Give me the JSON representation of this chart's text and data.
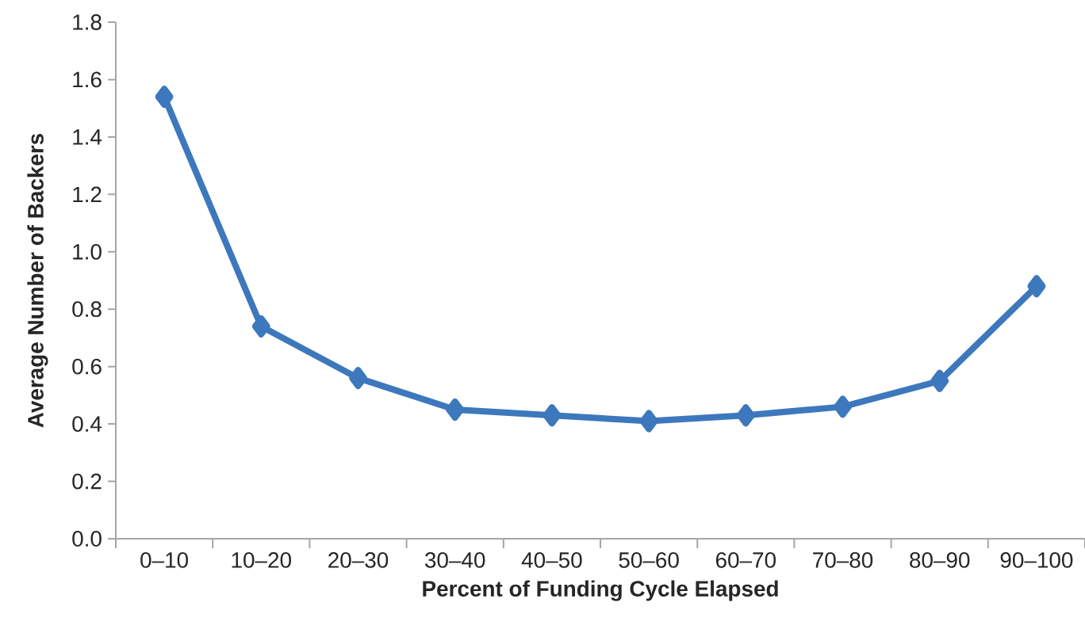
{
  "chart_data": {
    "type": "line",
    "xlabel": "Percent of Funding Cycle Elapsed",
    "ylabel": "Average Number of Backers",
    "categories": [
      "0–10",
      "10–20",
      "20–30",
      "30–40",
      "40–50",
      "50–60",
      "60–70",
      "70–80",
      "80–90",
      "90–100"
    ],
    "series": [
      {
        "color": "#3d78bd",
        "values": [
          1.54,
          0.74,
          0.56,
          0.45,
          0.43,
          0.41,
          0.43,
          0.46,
          0.55,
          0.88
        ]
      }
    ],
    "ylim": [
      0,
      1.8
    ],
    "yticks": [
      {
        "value": 0,
        "label": "0.0"
      },
      {
        "value": 0.2,
        "label": "0.2"
      },
      {
        "value": 0.4,
        "label": "0.4"
      },
      {
        "value": 0.6,
        "label": "0.6"
      },
      {
        "value": 0.8,
        "label": "0.8"
      },
      {
        "value": 1.0,
        "label": "1.0"
      },
      {
        "value": 1.2,
        "label": "1.2"
      },
      {
        "value": 1.4,
        "label": "1.4"
      },
      {
        "value": 1.6,
        "label": "1.6"
      },
      {
        "value": 1.8,
        "label": "1.8"
      }
    ],
    "marker": "diamond",
    "line_style": "solid"
  }
}
